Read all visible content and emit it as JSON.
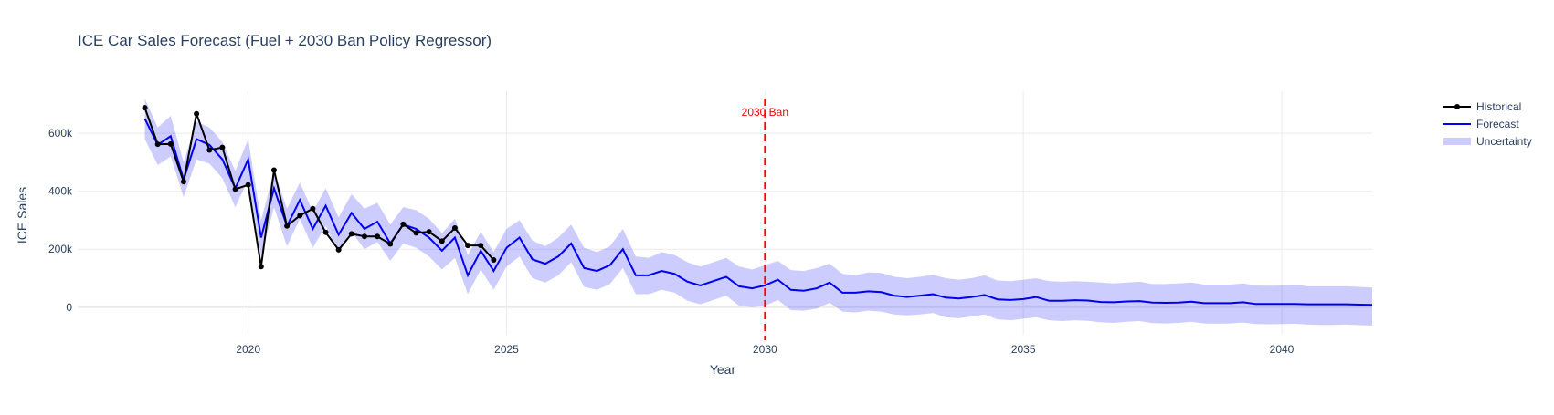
{
  "chart_data": {
    "type": "line",
    "title": "ICE Car Sales Forecast (Fuel + 2030 Ban Policy Regressor)",
    "xlabel": "Year",
    "ylabel": "ICE Sales",
    "xlim": [
      2016.7,
      2041.75
    ],
    "ylim": [
      -95000,
      745000
    ],
    "x_ticks": [
      2020,
      2025,
      2030,
      2035,
      2040
    ],
    "x_tick_labels": [
      "2020",
      "2025",
      "2030",
      "2035",
      "2040"
    ],
    "y_ticks": [
      0,
      200000,
      400000,
      600000
    ],
    "y_tick_labels": [
      "0",
      "200k",
      "400k",
      "600k"
    ],
    "grid": true,
    "legend_position": "top-right",
    "colors": {
      "historical": "#000000",
      "forecast": "#0000ee",
      "uncertainty": "rgba(0,0,255,0.2)",
      "ban_line": "#ff0000",
      "grid": "#ebebeb",
      "text": "#2a3f5f"
    },
    "annotation": {
      "text": "2030 Ban",
      "x": 2030
    },
    "series": [
      {
        "name": "Historical",
        "mode": "lines+markers",
        "x": [
          2018.0,
          2018.25,
          2018.5,
          2018.75,
          2019.0,
          2019.25,
          2019.5,
          2019.75,
          2020.0,
          2020.25,
          2020.5,
          2020.75,
          2021.0,
          2021.25,
          2021.5,
          2021.75,
          2022.0,
          2022.25,
          2022.5,
          2022.75,
          2023.0,
          2023.25,
          2023.5,
          2023.75,
          2024.0,
          2024.25,
          2024.5,
          2024.75
        ],
        "y": [
          688000,
          562000,
          563000,
          433000,
          667000,
          542000,
          551000,
          407000,
          422000,
          140000,
          473000,
          280000,
          316000,
          340000,
          258000,
          198000,
          253000,
          244000,
          244000,
          218000,
          286000,
          256000,
          260000,
          228000,
          273000,
          213000,
          213000,
          163000
        ]
      },
      {
        "name": "Forecast",
        "mode": "lines",
        "x": [
          2018.0,
          2018.25,
          2018.5,
          2018.75,
          2019.0,
          2019.25,
          2019.5,
          2019.75,
          2020.0,
          2020.25,
          2020.5,
          2020.75,
          2021.0,
          2021.25,
          2021.5,
          2021.75,
          2022.0,
          2022.25,
          2022.5,
          2022.75,
          2023.0,
          2023.25,
          2023.5,
          2023.75,
          2024.0,
          2024.25,
          2024.5,
          2024.75,
          2025.0,
          2025.25,
          2025.5,
          2025.75,
          2026.0,
          2026.25,
          2026.5,
          2026.75,
          2027.0,
          2027.25,
          2027.5,
          2027.75,
          2028.0,
          2028.25,
          2028.5,
          2028.75,
          2029.0,
          2029.25,
          2029.5,
          2029.75,
          2030.0,
          2030.25,
          2030.5,
          2030.75,
          2031.0,
          2031.25,
          2031.5,
          2031.75,
          2032.0,
          2032.25,
          2032.5,
          2032.75,
          2033.0,
          2033.25,
          2033.5,
          2033.75,
          2034.0,
          2034.25,
          2034.5,
          2034.75,
          2035.0,
          2035.25,
          2035.5,
          2035.75,
          2036.0,
          2036.25,
          2036.5,
          2036.75,
          2037.0,
          2037.25,
          2037.5,
          2037.75,
          2038.0,
          2038.25,
          2038.5,
          2038.75,
          2039.0,
          2039.25,
          2039.5,
          2039.75,
          2040.0,
          2040.25,
          2040.5,
          2040.75,
          2041.0,
          2041.25,
          2041.5,
          2041.75
        ],
        "y": [
          650000,
          560000,
          590000,
          440000,
          580000,
          560000,
          510000,
          410000,
          510000,
          240000,
          410000,
          280000,
          370000,
          270000,
          350000,
          250000,
          325000,
          270000,
          295000,
          220000,
          285000,
          270000,
          240000,
          195000,
          240000,
          110000,
          195000,
          125000,
          205000,
          240000,
          165000,
          150000,
          175000,
          220000,
          135000,
          125000,
          145000,
          200000,
          110000,
          110000,
          125000,
          115000,
          88000,
          75000,
          90000,
          105000,
          72000,
          65000,
          75000,
          95000,
          60000,
          57000,
          65000,
          85000,
          50000,
          50000,
          55000,
          52000,
          40000,
          35000,
          40000,
          45000,
          33000,
          30000,
          35000,
          42000,
          27000,
          25000,
          28000,
          35000,
          22000,
          22000,
          24000,
          23000,
          18000,
          17000,
          20000,
          21000,
          16000,
          15000,
          16000,
          19000,
          14000,
          14000,
          14000,
          17000,
          11000,
          11000,
          11000,
          11000,
          10000,
          10000,
          10000,
          10000,
          9000,
          8000
        ]
      },
      {
        "name": "Uncertainty",
        "mode": "band",
        "upper": [
          720000,
          620000,
          660000,
          500000,
          640000,
          620000,
          570000,
          470000,
          580000,
          300000,
          470000,
          340000,
          430000,
          330000,
          410000,
          310000,
          390000,
          340000,
          360000,
          285000,
          345000,
          335000,
          305000,
          255000,
          305000,
          180000,
          260000,
          190000,
          270000,
          300000,
          230000,
          210000,
          240000,
          285000,
          205000,
          190000,
          210000,
          270000,
          175000,
          170000,
          190000,
          180000,
          155000,
          140000,
          155000,
          170000,
          140000,
          130000,
          145000,
          160000,
          128000,
          125000,
          135000,
          150000,
          115000,
          110000,
          120000,
          118000,
          105000,
          100000,
          105000,
          112000,
          100000,
          95000,
          100000,
          110000,
          92000,
          90000,
          95000,
          100000,
          90000,
          88000,
          90000,
          88000,
          85000,
          82000,
          85000,
          88000,
          80000,
          80000,
          82000,
          85000,
          78000,
          78000,
          78000,
          82000,
          75000,
          74000,
          75000,
          78000,
          72000,
          72000,
          72000,
          72000,
          70000,
          68000
        ],
        "lower": [
          580000,
          490000,
          520000,
          380000,
          510000,
          495000,
          445000,
          345000,
          440000,
          175000,
          345000,
          210000,
          305000,
          205000,
          280000,
          185000,
          260000,
          200000,
          225000,
          160000,
          220000,
          205000,
          175000,
          130000,
          170000,
          45000,
          130000,
          60000,
          140000,
          175000,
          100000,
          85000,
          110000,
          155000,
          70000,
          60000,
          80000,
          135000,
          45000,
          45000,
          60000,
          50000,
          22000,
          10000,
          25000,
          40000,
          5000,
          0,
          5000,
          25000,
          -10000,
          -12000,
          -5000,
          15000,
          -15000,
          -18000,
          -12000,
          -15000,
          -25000,
          -28000,
          -25000,
          -20000,
          -35000,
          -38000,
          -32000,
          -25000,
          -42000,
          -45000,
          -40000,
          -35000,
          -45000,
          -48000,
          -45000,
          -47000,
          -52000,
          -54000,
          -50000,
          -48000,
          -55000,
          -56000,
          -54000,
          -50000,
          -56000,
          -57000,
          -56000,
          -53000,
          -58000,
          -59000,
          -58000,
          -57000,
          -60000,
          -61000,
          -61000,
          -60000,
          -62000,
          -63000
        ]
      }
    ]
  }
}
